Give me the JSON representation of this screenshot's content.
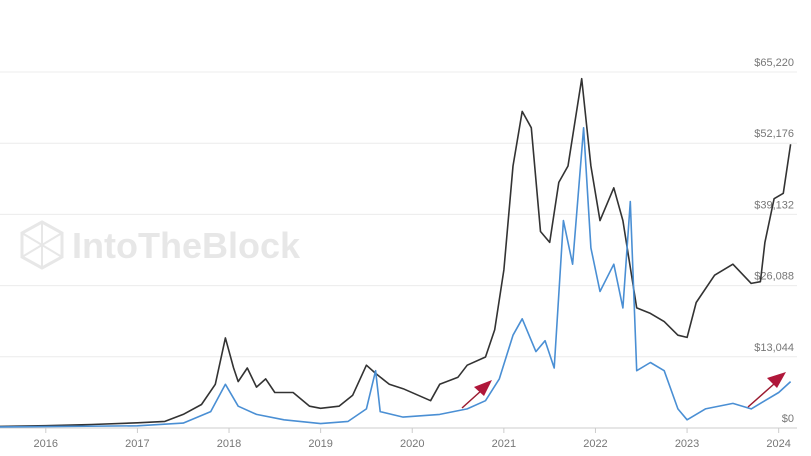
{
  "chart_data": {
    "type": "line",
    "watermark": "IntoTheBlock",
    "xlim": [
      2015.5,
      2024.2
    ],
    "xticks": [
      2016,
      2017,
      2018,
      2019,
      2020,
      2021,
      2022,
      2023,
      2024
    ],
    "ylim": [
      0,
      65220
    ],
    "yticks": [
      {
        "value": 0,
        "label": "$0"
      },
      {
        "value": 13044,
        "label": "$13,044"
      },
      {
        "value": 26088,
        "label": "$26,088"
      },
      {
        "value": 39132,
        "label": "$39,132"
      },
      {
        "value": 52176,
        "label": "$52,176"
      },
      {
        "value": 65220,
        "label": "$65,220"
      }
    ],
    "grid": true,
    "series": [
      {
        "color": "#333333",
        "x": [
          2015.5,
          2016.0,
          2016.5,
          2017.0,
          2017.3,
          2017.5,
          2017.7,
          2017.85,
          2017.96,
          2018.05,
          2018.1,
          2018.2,
          2018.3,
          2018.4,
          2018.5,
          2018.7,
          2018.88,
          2019.0,
          2019.2,
          2019.35,
          2019.5,
          2019.6,
          2019.75,
          2019.9,
          2020.2,
          2020.3,
          2020.5,
          2020.6,
          2020.8,
          2020.9,
          2021.0,
          2021.1,
          2021.2,
          2021.3,
          2021.4,
          2021.5,
          2021.6,
          2021.7,
          2021.85,
          2021.95,
          2022.05,
          2022.2,
          2022.3,
          2022.45,
          2022.6,
          2022.75,
          2022.9,
          2023.0,
          2023.1,
          2023.3,
          2023.5,
          2023.7,
          2023.8,
          2023.85,
          2023.95,
          2024.05,
          2024.13
        ],
        "values": [
          300,
          430,
          650,
          950,
          1200,
          2500,
          4300,
          8000,
          16500,
          11000,
          8500,
          11000,
          7500,
          9000,
          6500,
          6500,
          4000,
          3600,
          4000,
          6000,
          11500,
          10000,
          8000,
          7200,
          5000,
          8000,
          9300,
          11500,
          13000,
          18000,
          29000,
          48000,
          58000,
          55000,
          36000,
          34000,
          45000,
          48000,
          64000,
          48000,
          38000,
          44000,
          38000,
          22000,
          21000,
          19500,
          17000,
          16600,
          23000,
          28000,
          30000,
          26500,
          26800,
          34000,
          42000,
          43000,
          52000
        ]
      },
      {
        "color": "#4a8fd4",
        "x": [
          2015.5,
          2016.0,
          2017.0,
          2017.5,
          2017.8,
          2017.96,
          2018.1,
          2018.3,
          2018.6,
          2019.0,
          2019.3,
          2019.5,
          2019.6,
          2019.65,
          2019.9,
          2020.3,
          2020.6,
          2020.8,
          2020.95,
          2021.1,
          2021.2,
          2021.35,
          2021.45,
          2021.55,
          2021.65,
          2021.75,
          2021.87,
          2021.95,
          2022.05,
          2022.2,
          2022.3,
          2022.38,
          2022.45,
          2022.6,
          2022.75,
          2022.9,
          2023.0,
          2023.2,
          2023.5,
          2023.7,
          2023.85,
          2024.0,
          2024.13
        ],
        "values": [
          200,
          250,
          400,
          900,
          3000,
          8000,
          4000,
          2500,
          1500,
          800,
          1200,
          3500,
          10500,
          3000,
          2000,
          2500,
          3500,
          5000,
          9000,
          17000,
          20000,
          14000,
          16000,
          11000,
          38000,
          30000,
          55000,
          33000,
          25000,
          30000,
          22000,
          41500,
          10500,
          12000,
          10500,
          3500,
          1500,
          3500,
          4500,
          3500,
          5000,
          6500,
          8500
        ]
      }
    ]
  }
}
